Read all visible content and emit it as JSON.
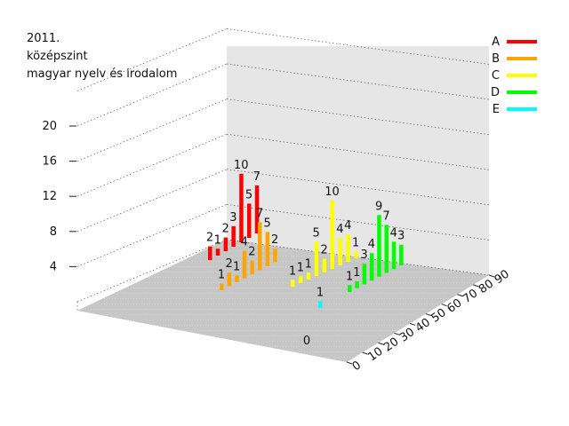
{
  "chart_data": {
    "type": "bar3d",
    "title_lines": [
      "2011.",
      "középszint",
      "magyar nyelv és irodalom"
    ],
    "z_ticks": [
      4,
      8,
      12,
      16,
      20
    ],
    "x_ticks": [
      0,
      10,
      20,
      30,
      40,
      50,
      60,
      70,
      80,
      90
    ],
    "legend": [
      {
        "name": "A",
        "color": "#ff0000"
      },
      {
        "name": "B",
        "color": "#ffa500"
      },
      {
        "name": "C",
        "color": "#ffff00"
      },
      {
        "name": "D",
        "color": "#00ff00"
      },
      {
        "name": "E",
        "color": "#00ffff"
      }
    ],
    "legend_placement": "top-right",
    "grid": true,
    "series": [
      {
        "name": "A",
        "values": [
          2,
          1,
          2,
          3,
          10,
          5,
          7
        ]
      },
      {
        "name": "B",
        "values": [
          1,
          2,
          1,
          4,
          2,
          7,
          5,
          2
        ]
      },
      {
        "name": "C",
        "values": [
          1,
          1,
          1,
          5,
          2,
          10,
          4,
          4,
          1
        ]
      },
      {
        "name": "D",
        "values": [
          1,
          1,
          3,
          4,
          9,
          7,
          4,
          3
        ]
      },
      {
        "name": "E",
        "values": [
          1
        ]
      }
    ],
    "extra_labels": [
      "0"
    ]
  }
}
